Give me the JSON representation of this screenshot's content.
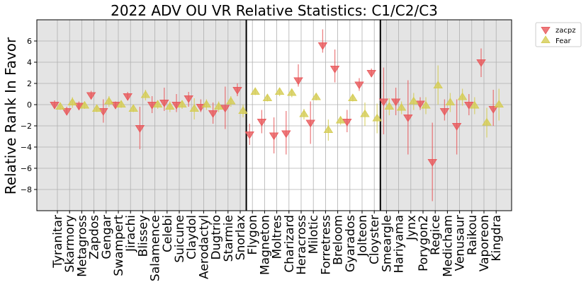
{
  "chart_data": {
    "type": "scatter",
    "title": "2022 ADV OU VR Relative Statistics: C1/C2/C3",
    "xlabel": "",
    "ylabel": "Relative Rank In Favor",
    "ylim": [
      -10,
      8
    ],
    "yticks": [
      -8,
      -6,
      -4,
      -2,
      0,
      2,
      4,
      6
    ],
    "grid": true,
    "legend_position": "outside-top-right",
    "categories": [
      "Tyranitar",
      "Skarmory",
      "Metagross",
      "Zapdos",
      "Gengar",
      "Swampert",
      "Jirachi",
      "Blissey",
      "Salamence",
      "Celebi",
      "Suicune",
      "Claydol",
      "Aerodactyl",
      "Dugtrio",
      "Starmie",
      "Snorlax",
      "Flygon",
      "Magneton",
      "Moltres",
      "Charizard",
      "Heracross",
      "Milotic",
      "Forretress",
      "Breloom",
      "Gyarados",
      "Jolteon",
      "Cloyster",
      "Smeargle",
      "Hariyama",
      "Jynx",
      "Porygon2",
      "Regice",
      "Medicham",
      "Venusaur",
      "Raikou",
      "Vaporeon",
      "Kingdra"
    ],
    "tiers": [
      {
        "name": "C1",
        "start": 0,
        "end": 15,
        "shaded": true
      },
      {
        "name": "C2",
        "start": 16,
        "end": 26,
        "shaded": false
      },
      {
        "name": "C3",
        "start": 27,
        "end": 36,
        "shaded": true
      }
    ],
    "series": [
      {
        "name": "zacpz",
        "marker": "triangle-down",
        "color": "#e8575a",
        "values": [
          0.0,
          -0.6,
          -0.1,
          0.9,
          -0.6,
          0.0,
          0.8,
          -2.2,
          0.0,
          0.2,
          0.0,
          0.6,
          -0.2,
          -0.8,
          -0.3,
          1.4,
          -2.8,
          -1.6,
          -2.9,
          -2.7,
          2.3,
          -1.7,
          5.6,
          3.4,
          -1.6,
          1.9,
          3.0,
          0.3,
          0.3,
          -1.2,
          0.1,
          -5.4,
          -0.6,
          -2.0,
          0.0,
          4.0,
          -0.4
        ],
        "err_low": [
          -0.4,
          -1.0,
          -0.5,
          0.5,
          -1.7,
          -0.3,
          0.4,
          -4.2,
          -0.8,
          -0.6,
          -0.7,
          -0.2,
          -0.7,
          -1.8,
          -2.3,
          0.8,
          -3.8,
          -2.7,
          -4.6,
          -4.7,
          1.7,
          -3.7,
          4.9,
          2.1,
          -2.6,
          1.3,
          2.6,
          -2.8,
          -1.0,
          -4.7,
          -0.5,
          -9.1,
          -1.5,
          -4.7,
          -1.0,
          2.6,
          -2.0
        ],
        "err_high": [
          0.4,
          -0.2,
          0.3,
          1.3,
          0.5,
          0.3,
          1.2,
          -0.2,
          0.8,
          1.6,
          1.0,
          1.2,
          0.5,
          0.2,
          1.7,
          2.0,
          -1.8,
          -0.5,
          -1.2,
          -0.6,
          3.8,
          0.3,
          7.1,
          5.2,
          -0.5,
          2.5,
          3.4,
          3.5,
          1.6,
          2.3,
          0.7,
          -1.7,
          0.5,
          0.5,
          1.0,
          5.3,
          1.4
        ]
      },
      {
        "name": "Fear",
        "marker": "triangle-up",
        "color": "#d4cc52",
        "values": [
          -0.2,
          0.2,
          -0.1,
          -0.4,
          0.3,
          0.0,
          -0.4,
          0.9,
          0.0,
          -0.2,
          0.0,
          -0.4,
          0.0,
          -0.2,
          0.3,
          -0.6,
          1.2,
          0.6,
          1.2,
          1.1,
          -0.9,
          0.7,
          -2.4,
          -1.5,
          0.6,
          -0.9,
          -1.3,
          -0.2,
          -0.3,
          0.3,
          -0.1,
          1.8,
          0.2,
          0.7,
          -0.1,
          -1.7,
          0.0
        ],
        "err_low": [
          -0.5,
          -0.3,
          -0.4,
          -0.7,
          -0.2,
          -0.3,
          -0.7,
          0.4,
          -0.4,
          -0.7,
          -0.4,
          -1.4,
          -0.5,
          -0.7,
          -0.2,
          -1.2,
          0.9,
          0.3,
          0.8,
          0.7,
          -1.4,
          0.4,
          -3.4,
          -1.9,
          0.3,
          -2.0,
          -2.7,
          -1.0,
          -0.9,
          -0.5,
          -0.9,
          0.0,
          -0.7,
          -0.1,
          -0.9,
          -3.1,
          -1.5
        ],
        "err_high": [
          0.1,
          0.7,
          0.2,
          -0.1,
          0.8,
          0.3,
          -0.1,
          1.4,
          0.4,
          0.3,
          0.4,
          0.6,
          0.5,
          0.3,
          0.8,
          0.0,
          1.5,
          0.9,
          1.6,
          1.5,
          -0.4,
          1.0,
          -1.4,
          -1.1,
          0.9,
          0.2,
          0.1,
          0.6,
          0.3,
          1.1,
          0.7,
          3.7,
          1.1,
          1.5,
          0.7,
          -0.3,
          1.5
        ]
      }
    ]
  }
}
